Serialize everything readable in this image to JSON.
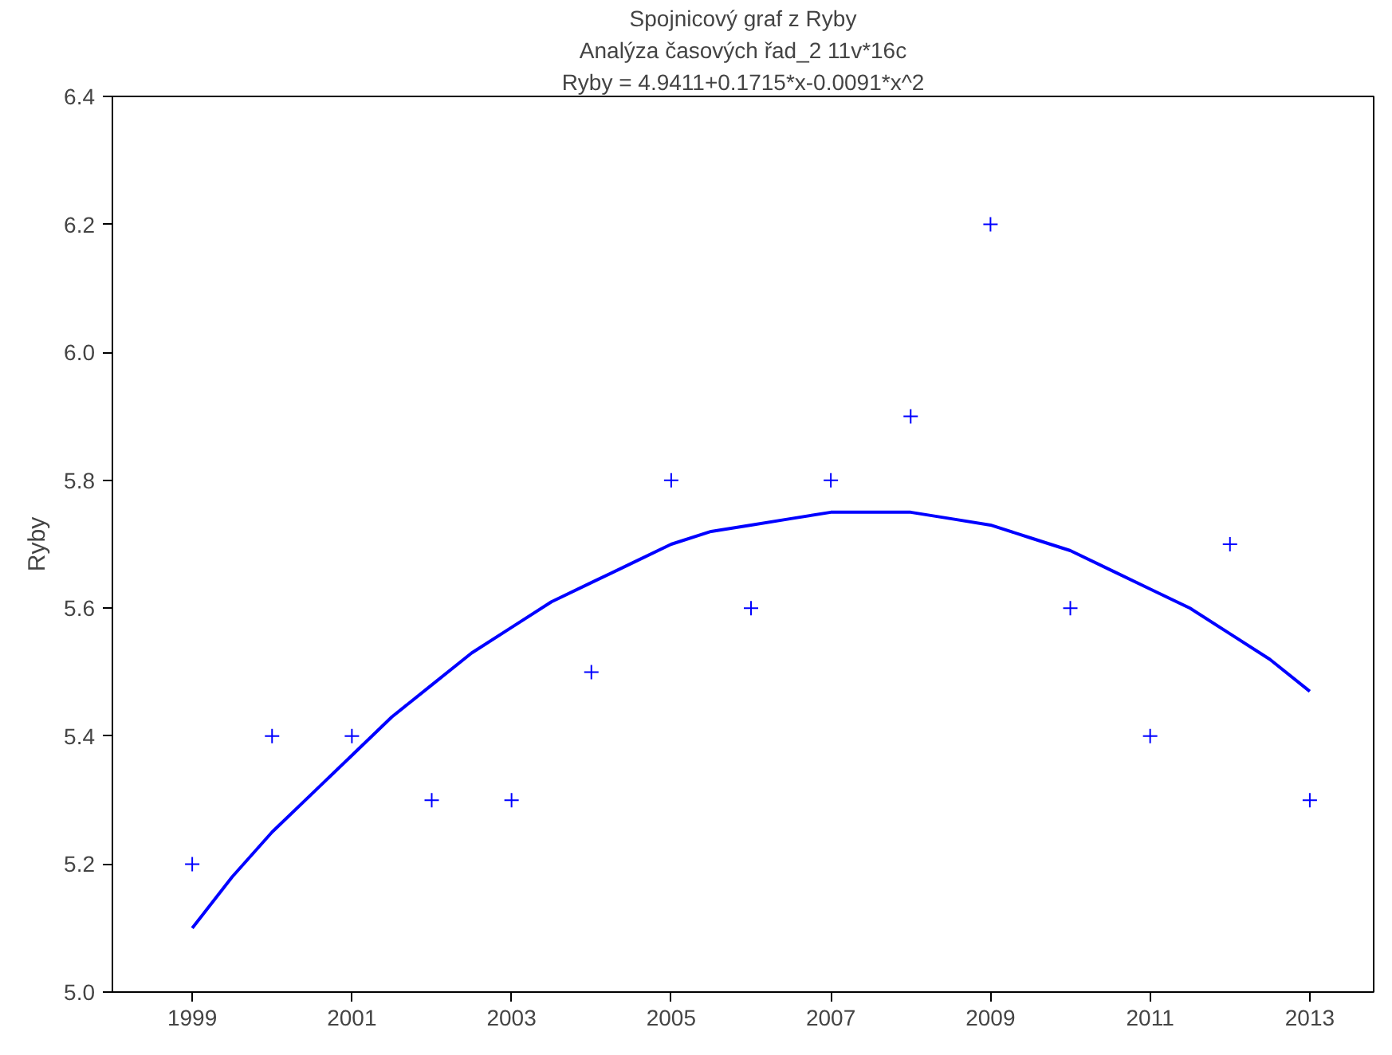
{
  "chart_data": {
    "type": "scatter",
    "title": "Spojnicový graf z Ryby",
    "subtitle": "Analýza časových řad_2 11v*16c",
    "annotations": [
      "Ryby = 4.9411+0.1715*x-0.0091*x^2"
    ],
    "ylabel": "Ryby",
    "xlim": [
      1998,
      2013.8
    ],
    "xticks": [
      1999,
      2001,
      2003,
      2005,
      2007,
      2009,
      2011,
      2013
    ],
    "ylim": [
      5.0,
      6.4
    ],
    "yticks": [
      {
        "value": 5.0,
        "label": "5.0"
      },
      5.2,
      5.4,
      5.6,
      5.8,
      {
        "value": 6.0,
        "label": "6.0"
      },
      6.2,
      6.4
    ],
    "grid": false,
    "series": [
      {
        "marker": "cross",
        "color": "#0000ff",
        "x": [
          1999,
          2000,
          2001,
          2002,
          2003,
          2004,
          2005,
          2006,
          2007,
          2008,
          2009,
          2010,
          2011,
          2012,
          2013
        ],
        "values": [
          5.2,
          5.4,
          5.4,
          5.3,
          5.3,
          5.5,
          5.8,
          5.6,
          5.8,
          5.9,
          6.2,
          5.6,
          5.4,
          5.7,
          5.3
        ]
      },
      {
        "type": "line",
        "color": "#0000ff",
        "line_style": "solid",
        "x": [
          1999,
          1999.5,
          2000,
          2000.5,
          2001,
          2001.5,
          2002,
          2002.5,
          2003,
          2003.5,
          2004,
          2004.5,
          2005,
          2005.5,
          2006,
          2006.5,
          2007,
          2007.5,
          2008,
          2008.5,
          2009,
          2009.5,
          2010,
          2010.5,
          2011,
          2011.5,
          2012,
          2012.5,
          2013
        ],
        "values": [
          5.1,
          5.18,
          5.25,
          5.31,
          5.37,
          5.43,
          5.48,
          5.53,
          5.57,
          5.61,
          5.64,
          5.67,
          5.7,
          5.72,
          5.73,
          5.74,
          5.75,
          5.75,
          5.75,
          5.74,
          5.73,
          5.71,
          5.69,
          5.66,
          5.63,
          5.6,
          5.56,
          5.52,
          5.47
        ]
      }
    ]
  }
}
